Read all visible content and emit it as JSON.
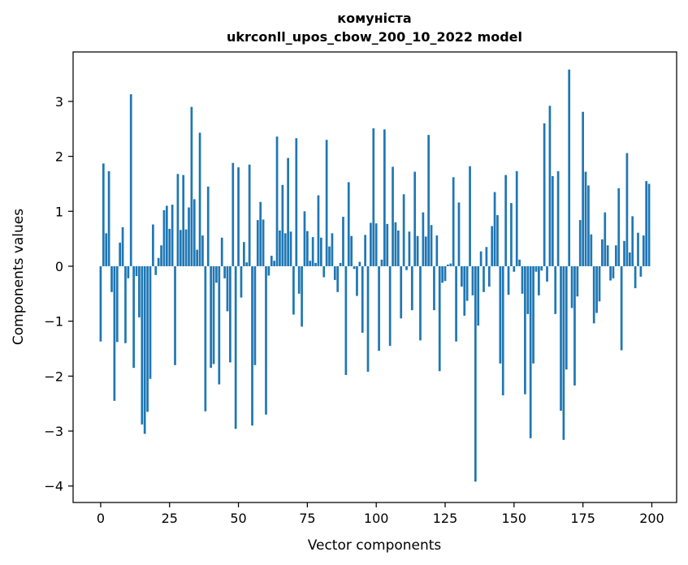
{
  "chart_data": {
    "type": "bar",
    "title": "комуністa",
    "subtitle": "ukrconll_upos_cbow_200_10_2022 model",
    "xlabel": "Vector components",
    "ylabel": "Components values",
    "xlim": [
      -10,
      209
    ],
    "ylim": [
      -4.3,
      3.9
    ],
    "xticks": [
      0,
      25,
      50,
      75,
      100,
      125,
      150,
      175,
      200
    ],
    "yticks": [
      -4,
      -3,
      -2,
      -1,
      0,
      1,
      2,
      3
    ],
    "ytick_labels": [
      "−4",
      "−3",
      "−2",
      "−1",
      "0",
      "1",
      "2",
      "3"
    ],
    "bar_color": "#1f77b4",
    "grid": false,
    "series": [
      {
        "name": "components",
        "values": [
          -1.37,
          1.87,
          0.6,
          1.73,
          -0.47,
          -2.45,
          -1.38,
          0.43,
          0.71,
          -1.4,
          -0.22,
          3.13,
          -1.85,
          -0.18,
          -0.93,
          -2.88,
          -3.05,
          -2.65,
          -2.05,
          0.76,
          -0.16,
          0.15,
          0.38,
          1.02,
          1.1,
          0.68,
          1.12,
          -1.8,
          1.68,
          0.66,
          1.66,
          0.67,
          1.07,
          2.9,
          1.22,
          0.3,
          2.43,
          0.56,
          -2.64,
          1.45,
          -1.85,
          -1.78,
          -0.3,
          -2.15,
          0.52,
          -0.22,
          -0.82,
          -1.75,
          1.88,
          -2.96,
          1.8,
          -0.57,
          0.44,
          0.07,
          1.85,
          -2.9,
          -1.8,
          0.84,
          1.17,
          0.85,
          -2.7,
          -0.17,
          0.19,
          0.1,
          2.36,
          0.65,
          1.48,
          0.6,
          1.97,
          0.63,
          -0.88,
          2.33,
          -0.5,
          -1.1,
          1.0,
          0.64,
          0.1,
          0.53,
          0.06,
          1.29,
          0.52,
          -0.2,
          2.3,
          0.36,
          0.6,
          -0.25,
          -0.47,
          0.06,
          0.9,
          -1.98,
          1.53,
          0.55,
          -0.05,
          -0.54,
          0.08,
          -1.21,
          0.57,
          -1.92,
          0.79,
          2.51,
          0.78,
          -1.54,
          0.12,
          2.49,
          0.77,
          -1.45,
          1.81,
          0.8,
          0.65,
          -0.95,
          1.31,
          -0.07,
          0.63,
          -0.8,
          1.72,
          0.55,
          -1.35,
          0.98,
          0.54,
          2.39,
          0.75,
          -0.8,
          0.56,
          -1.91,
          -0.3,
          -0.27,
          0.03,
          0.05,
          1.62,
          -1.37,
          1.16,
          -0.37,
          -0.9,
          -0.63,
          1.82,
          -0.53,
          -3.92,
          -1.08,
          0.27,
          -0.47,
          0.35,
          -0.37,
          0.73,
          1.35,
          0.93,
          -1.77,
          -2.35,
          1.66,
          -0.52,
          1.15,
          -0.1,
          1.73,
          0.12,
          -0.5,
          -2.33,
          -0.87,
          -3.13,
          -1.77,
          -0.1,
          -0.53,
          -0.08,
          2.6,
          -0.28,
          2.92,
          1.64,
          -0.87,
          1.73,
          -2.63,
          -3.16,
          -1.88,
          3.58,
          -0.76,
          -2.17,
          -0.55,
          0.84,
          2.81,
          1.72,
          1.47,
          0.58,
          -1.04,
          -0.85,
          -0.64,
          0.49,
          0.98,
          0.38,
          -0.26,
          -0.22,
          0.38,
          1.42,
          -1.53,
          0.46,
          2.06,
          0.25,
          0.91,
          -0.4,
          0.61,
          -0.19,
          0.56,
          1.55,
          1.5
        ]
      }
    ]
  }
}
